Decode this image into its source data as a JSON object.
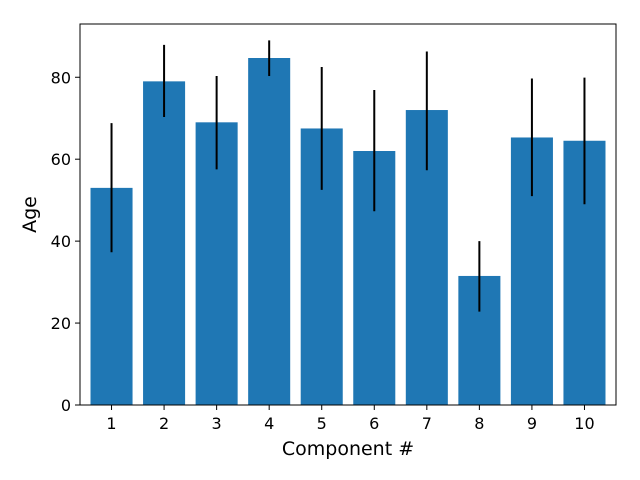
{
  "chart_data": {
    "type": "bar",
    "title": "",
    "xlabel": "Component #",
    "ylabel": "Age",
    "categories": [
      "1",
      "2",
      "3",
      "4",
      "5",
      "6",
      "7",
      "8",
      "9",
      "10"
    ],
    "values": [
      53.0,
      79.0,
      69.0,
      84.7,
      67.5,
      62.0,
      72.0,
      31.5,
      65.3,
      64.5
    ],
    "error_lower": [
      37.3,
      70.3,
      57.5,
      80.3,
      52.5,
      47.3,
      57.3,
      22.8,
      51.0,
      49.0
    ],
    "error_upper": [
      68.8,
      87.9,
      80.3,
      89.0,
      82.5,
      76.9,
      86.3,
      40.0,
      79.7,
      79.9
    ],
    "yticks": [
      0,
      20,
      40,
      60,
      80
    ],
    "ylim": [
      0,
      93
    ],
    "grid": false,
    "legend": "none",
    "bar_color": "#1f77b4",
    "error_bar_color": "#000000"
  }
}
